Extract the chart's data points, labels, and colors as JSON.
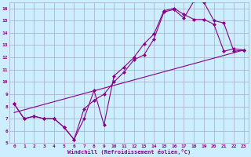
{
  "background_color": "#cceeff",
  "grid_color": "#aaaacc",
  "line_color": "#880088",
  "xlim": [
    -0.5,
    23.5
  ],
  "ylim": [
    5,
    16.5
  ],
  "xlabel": "Windchill (Refroidissement éolien,°C)",
  "xtick_labels": [
    "0",
    "1",
    "2",
    "3",
    "4",
    "5",
    "6",
    "7",
    "8",
    "9",
    "10",
    "11",
    "12",
    "13",
    "14",
    "15",
    "16",
    "17",
    "18",
    "19",
    "20",
    "21",
    "22",
    "23"
  ],
  "xtick_positions": [
    0,
    1,
    2,
    3,
    4,
    5,
    6,
    7,
    8,
    9,
    10,
    11,
    12,
    13,
    14,
    15,
    16,
    17,
    18,
    19,
    20,
    21,
    22,
    23
  ],
  "ytick_positions": [
    5,
    6,
    7,
    8,
    9,
    10,
    11,
    12,
    13,
    14,
    15,
    16
  ],
  "ytick_labels": [
    "5",
    "6",
    "7",
    "8",
    "9",
    "10",
    "11",
    "12",
    "13",
    "14",
    "15",
    "16"
  ],
  "line1_x": [
    0,
    1,
    2,
    3,
    4,
    5,
    6,
    7,
    8,
    9,
    10,
    11,
    12,
    13,
    14,
    15,
    16,
    17,
    18,
    19,
    20,
    21,
    22,
    23
  ],
  "line1_y": [
    8.2,
    7.0,
    7.2,
    7.0,
    7.0,
    6.3,
    5.3,
    7.0,
    9.3,
    6.5,
    10.5,
    11.2,
    12.0,
    13.1,
    13.9,
    15.8,
    16.0,
    15.5,
    15.1,
    15.1,
    14.7,
    12.5,
    12.7,
    12.6
  ],
  "line2_x": [
    0,
    1,
    2,
    3,
    4,
    5,
    6,
    7,
    8,
    9,
    10,
    11,
    12,
    13,
    14,
    15,
    16,
    17,
    18,
    19,
    20,
    21,
    22,
    23
  ],
  "line2_y": [
    8.2,
    7.0,
    7.2,
    7.0,
    7.0,
    6.3,
    5.3,
    7.8,
    8.5,
    9.0,
    10.0,
    10.8,
    11.8,
    12.2,
    13.5,
    15.7,
    15.9,
    15.2,
    16.6,
    16.5,
    15.0,
    14.8,
    12.5,
    12.6
  ],
  "line3_x": [
    0,
    23
  ],
  "line3_y": [
    7.5,
    12.6
  ]
}
